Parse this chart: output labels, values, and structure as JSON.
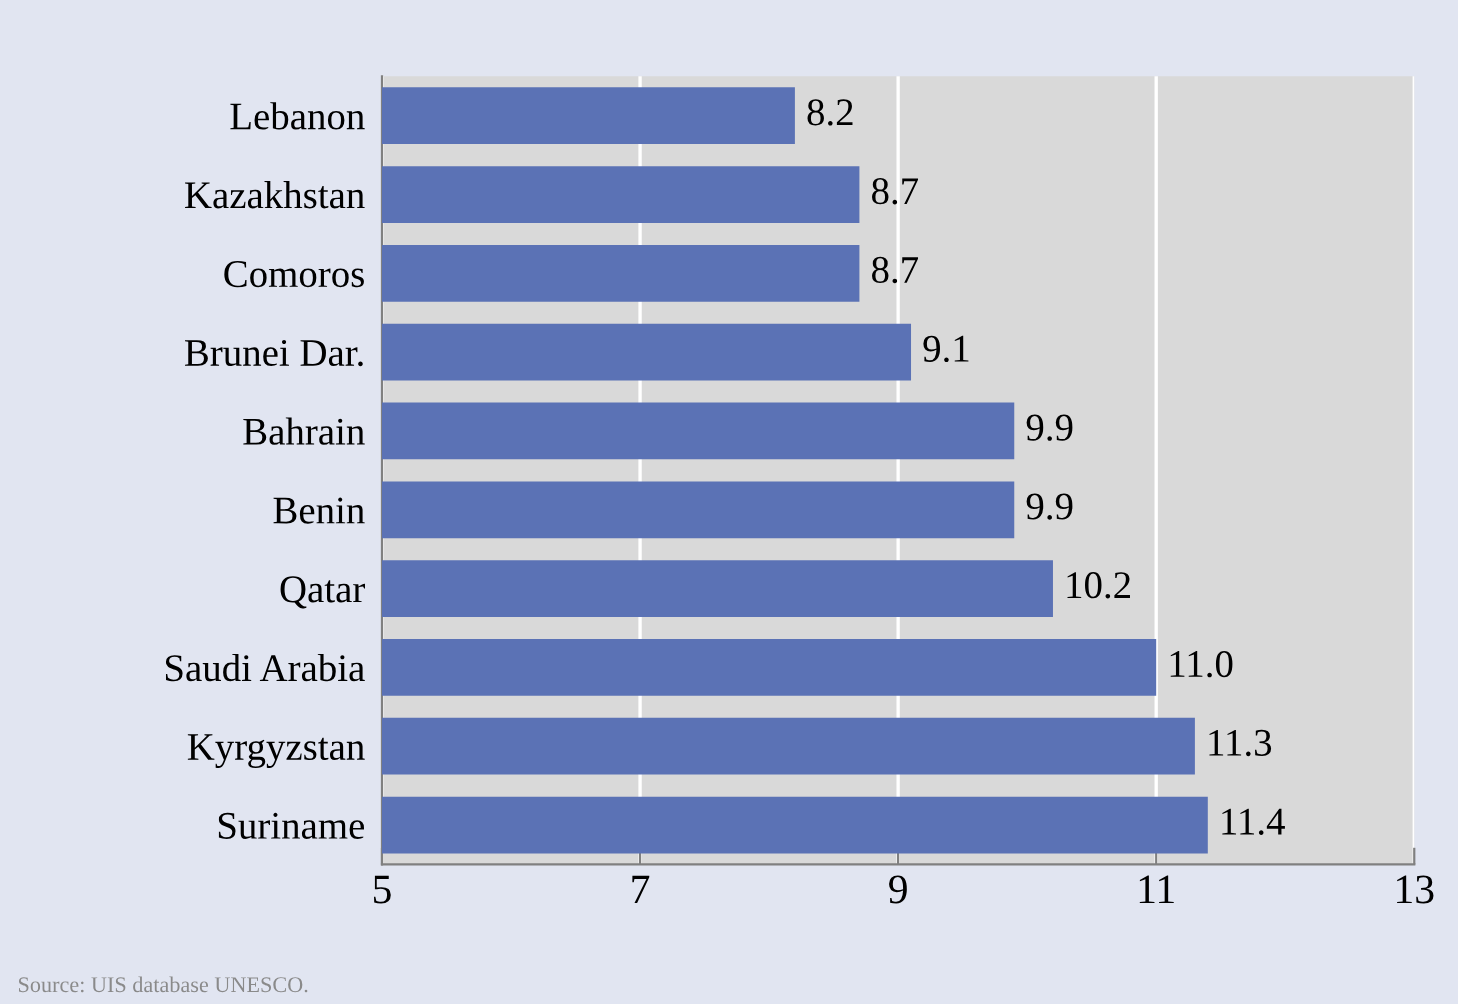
{
  "chart_data": {
    "type": "bar",
    "orientation": "horizontal",
    "categories": [
      "Lebanon",
      "Kazakhstan",
      "Comoros",
      "Brunei Dar.",
      "Bahrain",
      "Benin",
      "Qatar",
      "Saudi Arabia",
      "Kyrgyzstan",
      "Suriname"
    ],
    "values": [
      8.2,
      8.7,
      8.7,
      9.1,
      9.9,
      9.9,
      10.2,
      11.0,
      11.3,
      11.4
    ],
    "value_labels": [
      "8.2",
      "8.7",
      "8.7",
      "9.1",
      "9.9",
      "9.9",
      "10.2",
      "11.0",
      "11.3",
      "11.4"
    ],
    "color": "#5b72b5",
    "xlim": [
      5,
      13
    ],
    "xticks": [
      5,
      7,
      9,
      11,
      13
    ],
    "grid": "x",
    "annotations": [
      "Source: UIS database UNESCO."
    ]
  }
}
